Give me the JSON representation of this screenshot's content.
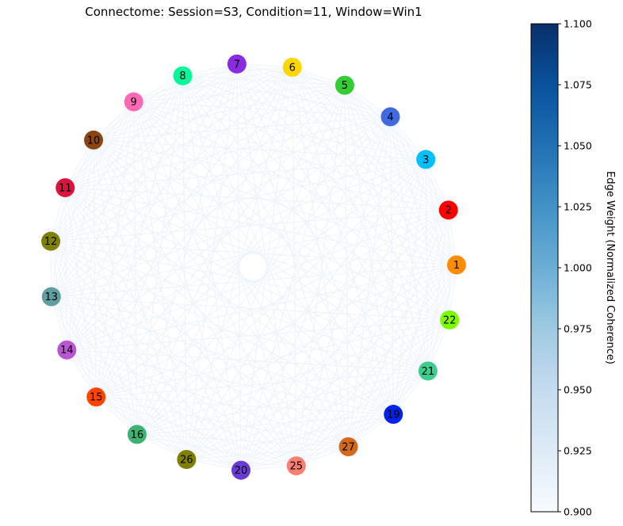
{
  "chart_data": {
    "type": "network",
    "title": "Connectome: Session=S3, Condition=11, Window=Win1",
    "colorbar": {
      "label": "Edge Weight (Normalized Coherence)",
      "range": [
        0.9,
        1.1
      ],
      "ticks": [
        "0.900",
        "0.925",
        "0.950",
        "0.975",
        "1.000",
        "1.025",
        "1.050",
        "1.075",
        "1.100"
      ],
      "colormap": "Blues",
      "colors": [
        "#f7fbff",
        "#deebf7",
        "#c6dbef",
        "#9ecae1",
        "#6baed6",
        "#4292c6",
        "#2171b5",
        "#08519c",
        "#08306b"
      ]
    },
    "edge_color": "#eef4fb",
    "nodes": [
      {
        "id": "1",
        "color": "#ff8c00"
      },
      {
        "id": "2",
        "color": "#ff0000"
      },
      {
        "id": "3",
        "color": "#00bfff"
      },
      {
        "id": "4",
        "color": "#4169e1"
      },
      {
        "id": "5",
        "color": "#32cd32"
      },
      {
        "id": "6",
        "color": "#ffd700"
      },
      {
        "id": "7",
        "color": "#8a2be2"
      },
      {
        "id": "8",
        "color": "#00fa9a"
      },
      {
        "id": "9",
        "color": "#ff69b4"
      },
      {
        "id": "10",
        "color": "#8b4513"
      },
      {
        "id": "11",
        "color": "#dc143c"
      },
      {
        "id": "12",
        "color": "#808000"
      },
      {
        "id": "13",
        "color": "#5f9ea0"
      },
      {
        "id": "14",
        "color": "#ba55d3"
      },
      {
        "id": "15",
        "color": "#ff4500"
      },
      {
        "id": "16",
        "color": "#3cb371"
      },
      {
        "id": "26",
        "color": "#808000"
      },
      {
        "id": "20",
        "color": "#6a3bd2"
      },
      {
        "id": "25",
        "color": "#fa8072"
      },
      {
        "id": "27",
        "color": "#d2691e"
      },
      {
        "id": "19",
        "color": "#0022ee"
      },
      {
        "id": "21",
        "color": "#3cce8c"
      },
      {
        "id": "22",
        "color": "#7cfc00"
      }
    ]
  }
}
